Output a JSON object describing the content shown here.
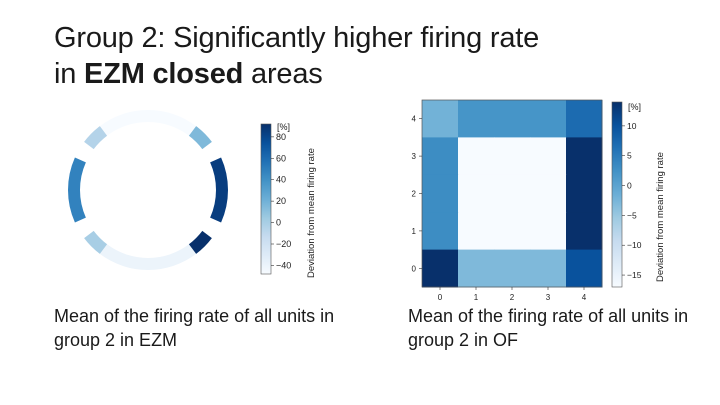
{
  "slide": {
    "title_line1": "Group 2: Significantly higher firing rate",
    "title_line2_pre": "in ",
    "title_line2_bold": "EZM closed",
    "title_line2_post": " areas",
    "caption_ezm": "Mean of the firing rate of all units in group 2 in EZM",
    "caption_of": "Mean of the firing rate of all units in group 2 in OF"
  },
  "colors": {
    "colormap": "Blues",
    "low": "#f7fbff",
    "high": "#08306b"
  },
  "chart_data": [
    {
      "type": "heatmap",
      "subtype": "ring",
      "name": "EZM",
      "segments": [
        {
          "sector": "top",
          "value": -48
        },
        {
          "sector": "upper-right",
          "value": 15
        },
        {
          "sector": "right",
          "value": 85
        },
        {
          "sector": "lower-right",
          "value": 92
        },
        {
          "sector": "bottom",
          "value": -40
        },
        {
          "sector": "lower-left",
          "value": 0
        },
        {
          "sector": "left",
          "value": 48
        },
        {
          "sector": "upper-left",
          "value": -5
        }
      ],
      "colorbar": {
        "label": "Deviation from mean firing rate",
        "unit": "[%]",
        "ticks": [
          "80",
          "60",
          "40",
          "20",
          "0",
          "−20",
          "−40"
        ],
        "range": [
          -48,
          92
        ]
      }
    },
    {
      "type": "heatmap",
      "name": "OF",
      "x_ticks": [
        "0",
        "1",
        "2",
        "3",
        "4"
      ],
      "y_ticks": [
        "0",
        "1",
        "2",
        "3",
        "4"
      ],
      "cells": [
        {
          "x": 0,
          "y": 4,
          "value": -2
        },
        {
          "x": 1,
          "y": 4,
          "value": 2
        },
        {
          "x": 2,
          "y": 4,
          "value": 2
        },
        {
          "x": 3,
          "y": 4,
          "value": 2
        },
        {
          "x": 4,
          "y": 4,
          "value": 7
        },
        {
          "x": 0,
          "y": 3,
          "value": 3
        },
        {
          "x": 1,
          "y": 3,
          "value": -17
        },
        {
          "x": 2,
          "y": 3,
          "value": -17
        },
        {
          "x": 3,
          "y": 3,
          "value": -17
        },
        {
          "x": 4,
          "y": 3,
          "value": 14
        },
        {
          "x": 0,
          "y": 2,
          "value": 3
        },
        {
          "x": 1,
          "y": 2,
          "value": -17
        },
        {
          "x": 2,
          "y": 2,
          "value": -17
        },
        {
          "x": 3,
          "y": 2,
          "value": -17
        },
        {
          "x": 4,
          "y": 2,
          "value": 14
        },
        {
          "x": 0,
          "y": 1,
          "value": 3
        },
        {
          "x": 1,
          "y": 1,
          "value": -17
        },
        {
          "x": 2,
          "y": 1,
          "value": -17
        },
        {
          "x": 3,
          "y": 1,
          "value": -17
        },
        {
          "x": 4,
          "y": 1,
          "value": 14
        },
        {
          "x": 0,
          "y": 0,
          "value": 14
        },
        {
          "x": 1,
          "y": 0,
          "value": -3
        },
        {
          "x": 2,
          "y": 0,
          "value": -3
        },
        {
          "x": 3,
          "y": 0,
          "value": -3
        },
        {
          "x": 4,
          "y": 0,
          "value": 10
        }
      ],
      "colorbar": {
        "label": "Deviation from mean firing rate",
        "unit": "[%]",
        "ticks": [
          "10",
          "5",
          "0",
          "−5",
          "−10",
          "−15"
        ],
        "range": [
          -17,
          14
        ]
      }
    }
  ]
}
